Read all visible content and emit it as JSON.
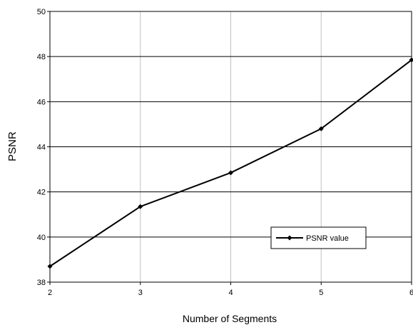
{
  "chart_data": {
    "type": "line",
    "title": "",
    "xlabel": "Number of Segments",
    "ylabel": "PSNR",
    "x": [
      2,
      3,
      4,
      5,
      6
    ],
    "xlim": [
      2,
      6
    ],
    "ylim": [
      38,
      50
    ],
    "x_ticks": [
      2,
      3,
      4,
      5,
      6
    ],
    "y_ticks": [
      38,
      40,
      42,
      44,
      46,
      48,
      50
    ],
    "x_tick_labels": [
      "2",
      "3",
      "4",
      "5",
      "6"
    ],
    "y_tick_labels": [
      "38",
      "40",
      "42",
      "44",
      "46",
      "48",
      "50"
    ],
    "grid": {
      "horizontal": true,
      "vertical": true,
      "horizontal_color": "#000000",
      "vertical_color": "#c0c0c0"
    },
    "legend": {
      "placement": "bottom-right",
      "entries": [
        "PSNR value"
      ]
    },
    "series": [
      {
        "name": "PSNR value",
        "values": [
          38.7,
          41.35,
          42.85,
          44.8,
          47.85
        ],
        "color": "#000000",
        "marker": "diamond"
      }
    ]
  }
}
